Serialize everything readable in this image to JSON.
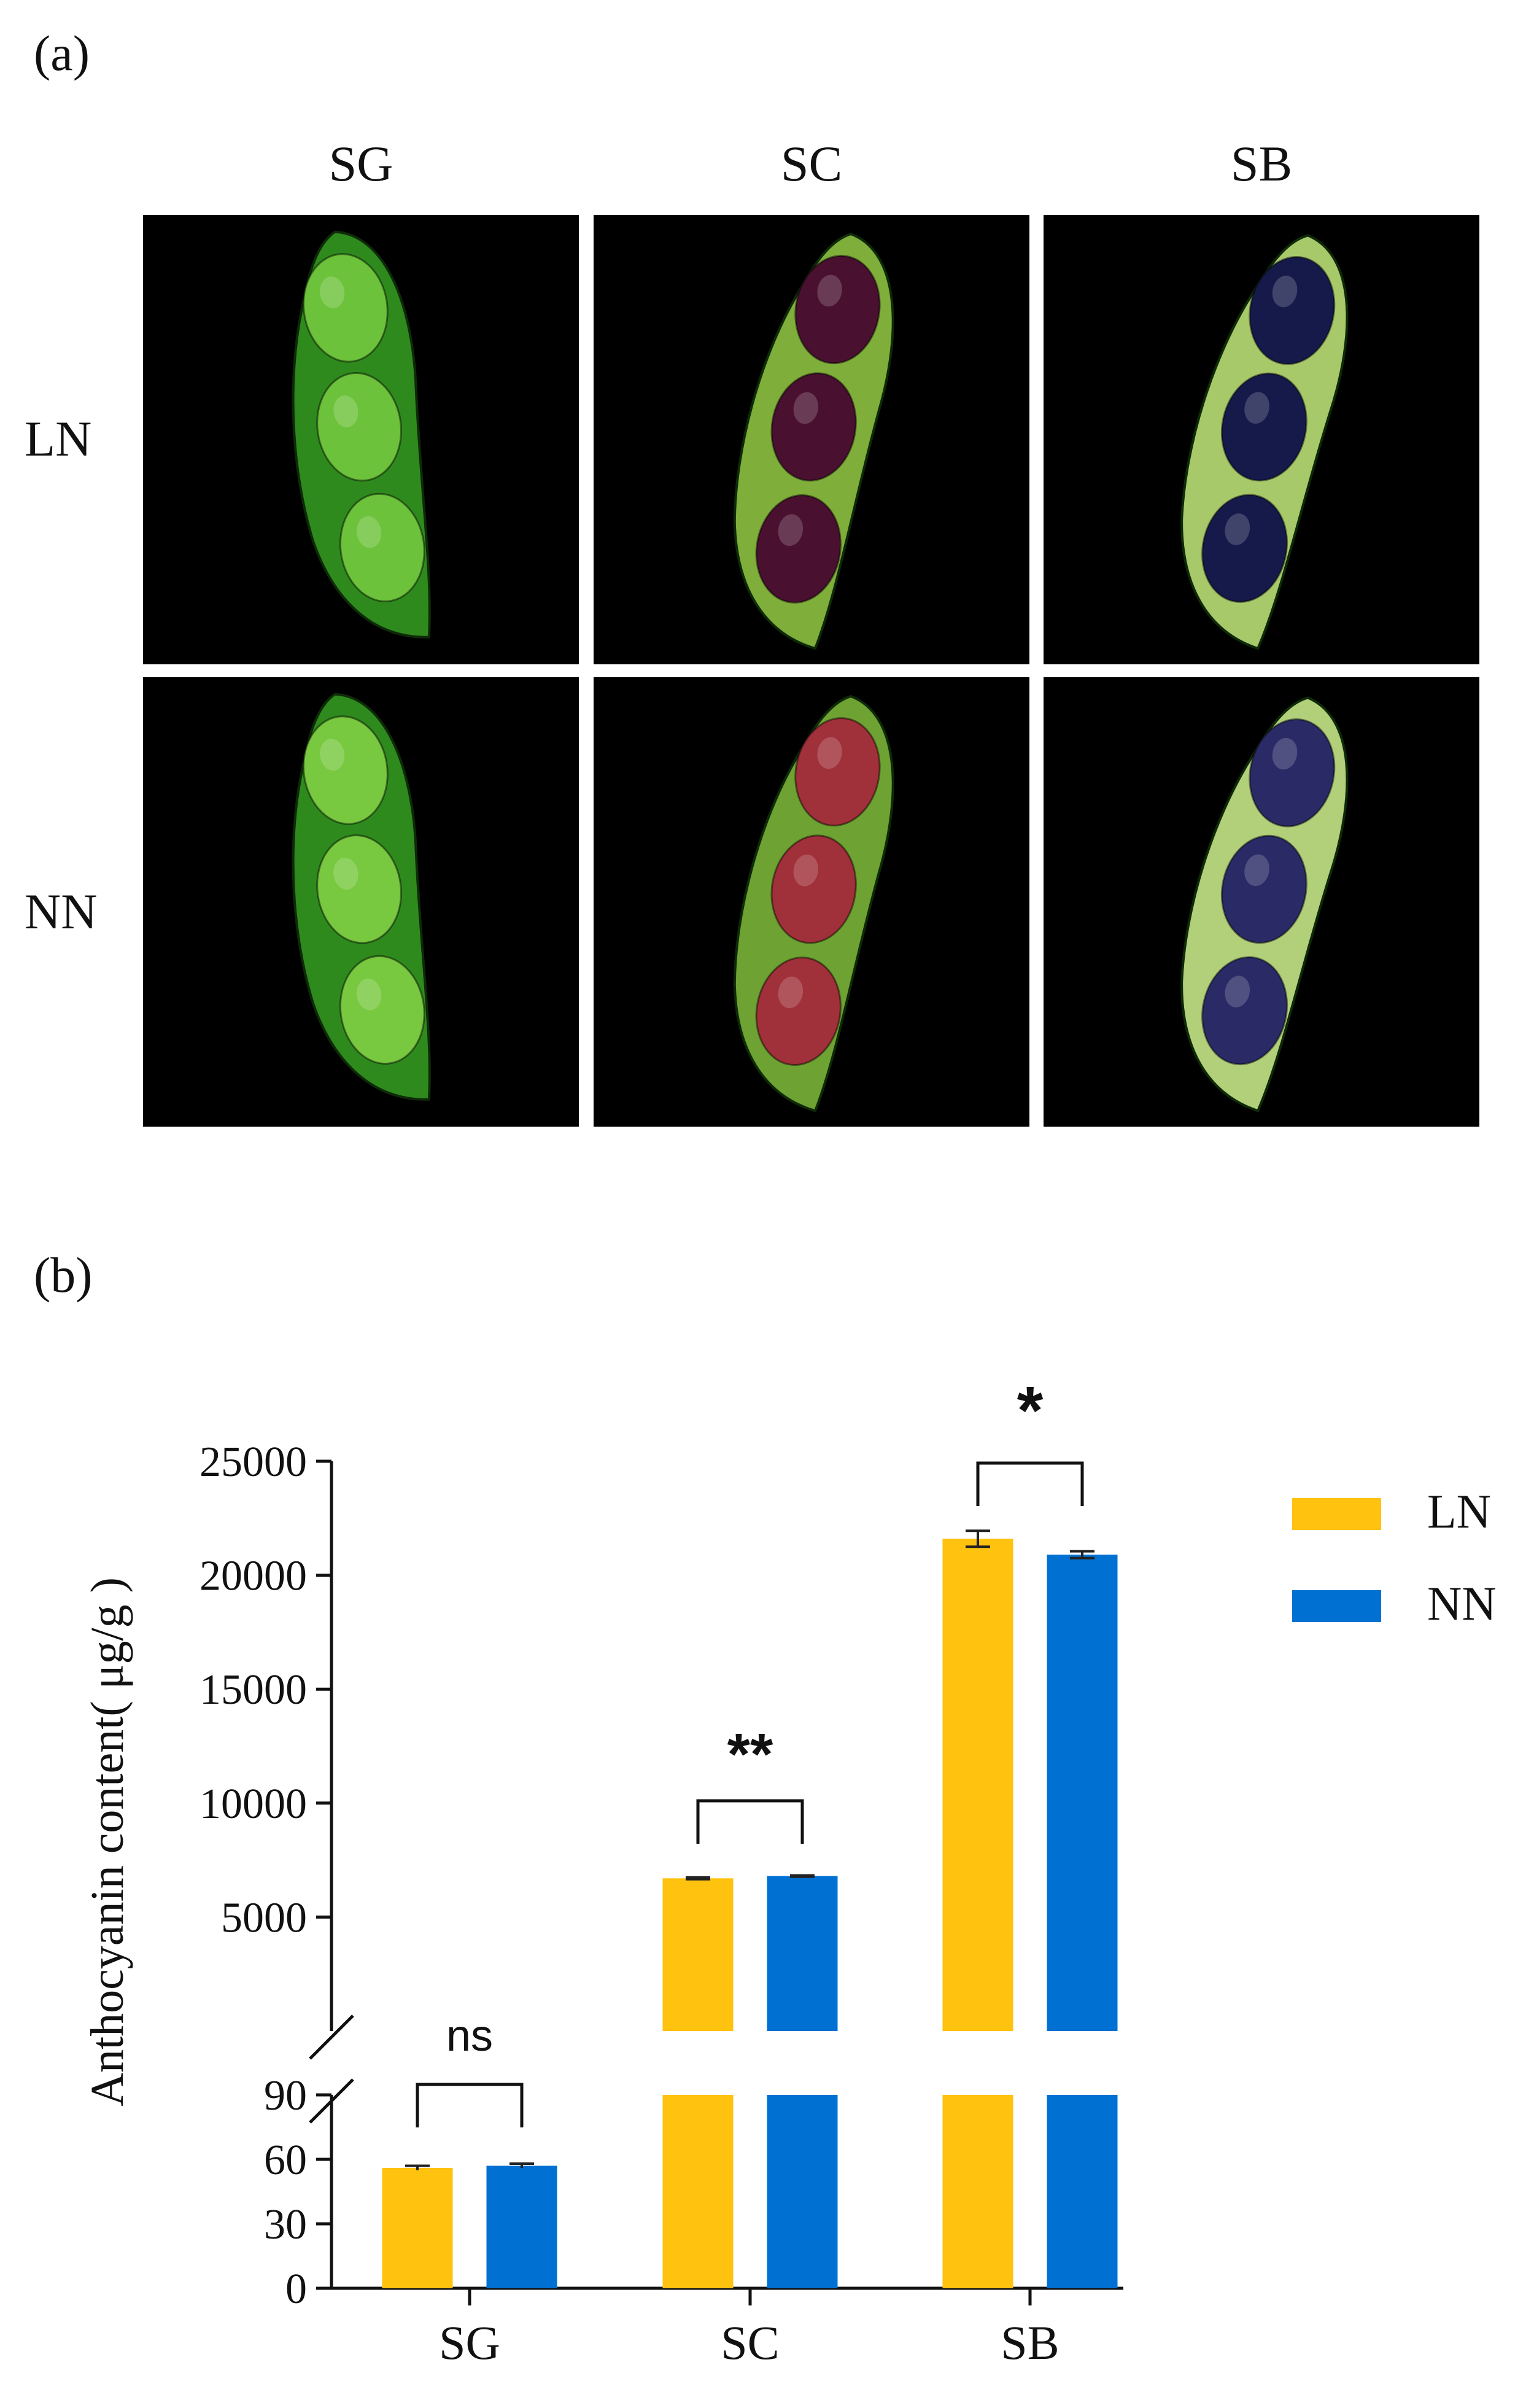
{
  "panel_a": {
    "label": "(a)",
    "columns": [
      "SG",
      "SC",
      "SB"
    ],
    "rows": [
      "LN",
      "NN"
    ],
    "photos": [
      {
        "row": "LN",
        "col": "SG",
        "pod": "#2f8a1e",
        "seed": "#6cc23a"
      },
      {
        "row": "LN",
        "col": "SC",
        "pod": "#7fae3a",
        "seed": "#4a1030"
      },
      {
        "row": "LN",
        "col": "SB",
        "pod": "#a8c96a",
        "seed": "#161a4a"
      },
      {
        "row": "NN",
        "col": "SG",
        "pod": "#2f8a1e",
        "seed": "#78c840"
      },
      {
        "row": "NN",
        "col": "SC",
        "pod": "#6ea232",
        "seed": "#a0303a"
      },
      {
        "row": "NN",
        "col": "SB",
        "pod": "#b2cf7a",
        "seed": "#2a2a66"
      }
    ]
  },
  "panel_b": {
    "label": "(b)"
  },
  "chart_data": {
    "type": "bar",
    "categories": [
      "SG",
      "SC",
      "SB"
    ],
    "series": [
      {
        "name": "LN",
        "values": [
          56,
          6700,
          21600
        ],
        "errors": [
          1,
          40,
          350
        ],
        "color": "#FFC20E"
      },
      {
        "name": "NN",
        "values": [
          57,
          6800,
          20900
        ],
        "errors": [
          1,
          30,
          150
        ],
        "color": "#0070D2"
      }
    ],
    "ylabel": "Anthocyanin content( μg/g )",
    "broken_axis": {
      "lower": {
        "ylim": [
          0,
          90
        ],
        "ticks": [
          "0",
          "30",
          "60",
          "90"
        ]
      },
      "upper": {
        "ylim": [
          0,
          25000
        ],
        "ticks": [
          "5000",
          "10000",
          "15000",
          "20000",
          "25000"
        ]
      }
    },
    "significance": [
      "ns",
      "**",
      "*"
    ],
    "legend_position": "top-right"
  }
}
